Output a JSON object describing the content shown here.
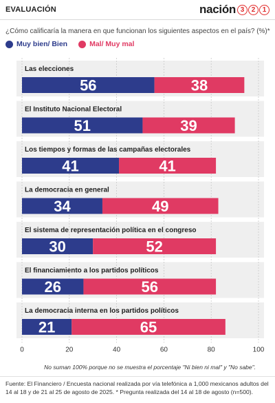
{
  "header": {
    "section": "EVALUACIÓN",
    "brand_word": "nación",
    "brand_digits": [
      "3",
      "2",
      "1"
    ]
  },
  "question": "¿Cómo calificaría la manera en que funcionan los siguientes aspectos en el país? (%)*",
  "colors": {
    "positive": "#2d3c8c",
    "negative": "#e03a63",
    "band": "#efefef",
    "grid": "#c8c8c8"
  },
  "chart_data": {
    "type": "bar",
    "orientation": "horizontal",
    "stacked": true,
    "categories": [
      "Las elecciones",
      "El Instituto Nacional Electoral",
      "Los tiempos y formas de las campañas electorales",
      "La democracia en general",
      "El sistema de representación política en el congreso",
      "El financiamiento a los partidos políticos",
      "La democracia interna en los partidos políticos"
    ],
    "series": [
      {
        "name": "Muy bien/ Bien",
        "color": "#2d3c8c",
        "values": [
          56,
          51,
          41,
          34,
          30,
          26,
          21
        ]
      },
      {
        "name": "Mal/ Muy mal",
        "color": "#e03a63",
        "values": [
          38,
          39,
          41,
          49,
          52,
          56,
          65
        ]
      }
    ],
    "xlim": [
      0,
      100
    ],
    "xticks": [
      0,
      20,
      40,
      60,
      80,
      100
    ],
    "grid": true,
    "legend_position": "top-left"
  },
  "notes": {
    "chart_note": "No suman 100% porque no se muestra el porcentaje \"Ni bien ni mal\" y \"No sabe\".",
    "source": "Fuente: El Financiero / Encuesta nacional realizada por vía telefónica a 1,000 mexicanos adultos del 14 al 18 y de 21 al 25 de agosto de 2025. * Pregunta realizada del 14 al 18 de agosto (n=500)."
  }
}
